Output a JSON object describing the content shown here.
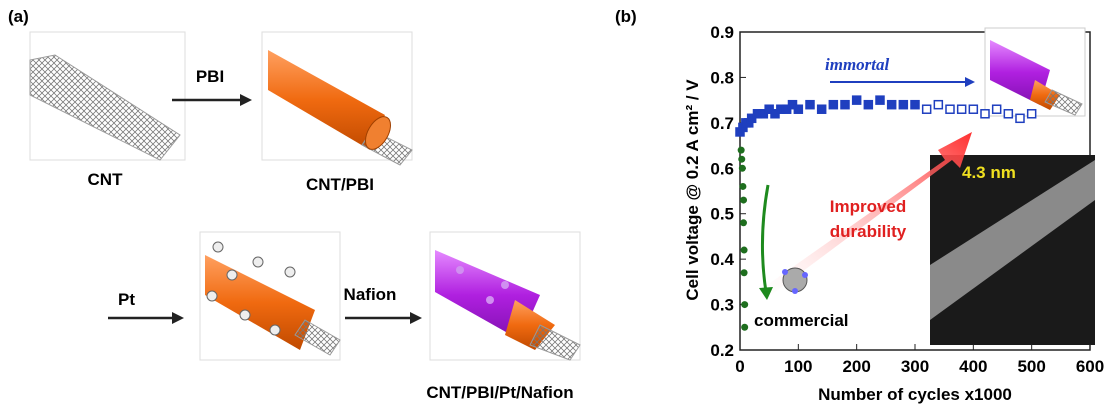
{
  "panel_a": {
    "label": "(a)",
    "cnt": "CNT",
    "arrow_pbi": "PBI",
    "cnt_pbi": "CNT/PBI",
    "arrow_pt": "Pt",
    "arrow_nafion": "Nafion",
    "final": "CNT/PBI/Pt/Nafion"
  },
  "chart_data": {
    "type": "scatter",
    "panel_label": "(b)",
    "x_label": "Number of cycles x1000",
    "y_label": "Cell voltage @ 0.2 A cm² / V",
    "xlim": [
      0,
      600
    ],
    "xticks": [
      0,
      100,
      200,
      300,
      400,
      500,
      600
    ],
    "ylim": [
      0.2,
      0.9
    ],
    "yticks": [
      0.2,
      0.3,
      0.4,
      0.5,
      0.6,
      0.7,
      0.8,
      0.9
    ],
    "annotations": {
      "immortal": "immortal",
      "improved_1": "Improved",
      "improved_2": "durability",
      "commercial": "commercial",
      "scale": "4.3 nm"
    },
    "series": [
      {
        "color": "#1f3fbf",
        "marker": "filled",
        "x": [
          0,
          5,
          10,
          15,
          20,
          30,
          40,
          50,
          60,
          70,
          80,
          90,
          100,
          120,
          140,
          160,
          180,
          200,
          220,
          240,
          260,
          280,
          300
        ],
        "values": [
          0.68,
          0.69,
          0.7,
          0.7,
          0.71,
          0.72,
          0.72,
          0.73,
          0.72,
          0.73,
          0.73,
          0.74,
          0.73,
          0.74,
          0.73,
          0.74,
          0.74,
          0.75,
          0.74,
          0.75,
          0.74,
          0.74,
          0.74
        ]
      },
      {
        "color": "#1f3fbf",
        "marker": "open",
        "x": [
          320,
          340,
          360,
          380,
          400,
          420,
          440,
          460,
          480,
          500
        ],
        "values": [
          0.73,
          0.74,
          0.73,
          0.73,
          0.73,
          0.72,
          0.73,
          0.72,
          0.71,
          0.72
        ]
      },
      {
        "color": "#1e6e1e",
        "marker": "dot",
        "x": [
          2,
          3,
          4,
          5,
          6,
          6,
          7,
          7,
          8,
          8
        ],
        "values": [
          0.64,
          0.62,
          0.6,
          0.56,
          0.53,
          0.48,
          0.42,
          0.37,
          0.3,
          0.25
        ]
      }
    ]
  }
}
